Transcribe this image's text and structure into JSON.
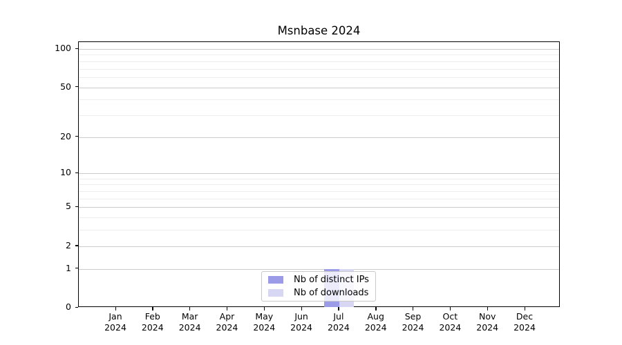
{
  "chart_data": {
    "type": "bar",
    "title": "Msnbase 2024",
    "categories": [
      "Jan 2024",
      "Feb 2024",
      "Mar 2024",
      "Apr 2024",
      "May 2024",
      "Jun 2024",
      "Jul 2024",
      "Aug 2024",
      "Sep 2024",
      "Oct 2024",
      "Nov 2024",
      "Dec 2024"
    ],
    "series": [
      {
        "name": "Nb of distinct IPs",
        "color": "#9b9be8",
        "values": [
          0,
          0,
          0,
          0,
          0,
          0,
          1,
          0,
          0,
          0,
          0,
          0
        ]
      },
      {
        "name": "Nb of downloads",
        "color": "#d7d7f4",
        "values": [
          0,
          0,
          0,
          0,
          0,
          0,
          1,
          0,
          0,
          0,
          0,
          0
        ]
      }
    ],
    "xlabel": "",
    "ylabel": "",
    "yscale": "log1p",
    "ylim": [
      0,
      113
    ],
    "yticks": [
      0,
      1,
      2,
      5,
      10,
      20,
      50,
      100
    ],
    "minor_gridlines": [
      3,
      4,
      6,
      7,
      8,
      9,
      30,
      40,
      60,
      70,
      80,
      90
    ],
    "grid": true,
    "legend_position": "lower center",
    "colors": {
      "major_grid": "#cccccc",
      "minor_grid": "#ededed",
      "axis": "#000000",
      "background": "#ffffff"
    }
  }
}
